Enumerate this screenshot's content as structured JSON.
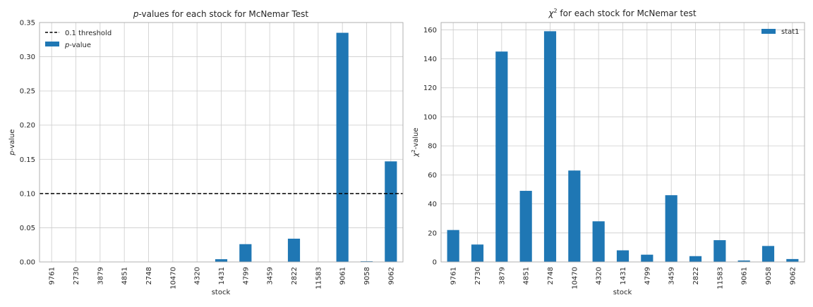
{
  "chart_data": [
    {
      "type": "bar",
      "title_pre": "",
      "title_italic": "p",
      "title_post": "-values for each stock for McNemar Test",
      "xlabel": "stock",
      "ylabel_italic": "p",
      "ylabel_post": "-value",
      "categories": [
        "9761",
        "2730",
        "3879",
        "4851",
        "2748",
        "10470",
        "4320",
        "1431",
        "4799",
        "3459",
        "2822",
        "11583",
        "9061",
        "9058",
        "9062"
      ],
      "values": [
        0.0,
        0.0,
        0.0,
        0.0,
        0.0,
        0.0,
        0.0,
        0.004,
        0.026,
        0.0,
        0.034,
        0.0,
        0.335,
        0.001,
        0.147
      ],
      "ylim": [
        0,
        0.35
      ],
      "yticks": [
        "0.00",
        "0.05",
        "0.10",
        "0.15",
        "0.20",
        "0.25",
        "0.30",
        "0.35"
      ],
      "threshold": 0.1,
      "threshold_label": "0.1 threshold",
      "legend_bar_italic": "p",
      "legend_bar_post": "-value",
      "legend_position": "top-left",
      "bar_color": "#1f77b4",
      "grid": true
    },
    {
      "type": "bar",
      "title_pre": "",
      "title_italic": "χ",
      "title_sup": "2",
      "title_post": " for each stock for McNemar test",
      "xlabel": "stock",
      "ylabel_italic": "χ",
      "ylabel_sup": "2",
      "ylabel_post": "-value",
      "categories": [
        "9761",
        "2730",
        "3879",
        "4851",
        "2748",
        "10470",
        "4320",
        "1431",
        "4799",
        "3459",
        "2822",
        "11583",
        "9061",
        "9058",
        "9062"
      ],
      "series": [
        {
          "name": "stat1",
          "values": [
            22,
            12,
            145,
            49,
            159,
            63,
            28,
            8,
            5,
            46,
            4,
            15,
            1,
            11,
            2
          ]
        }
      ],
      "ylim": [
        0,
        165
      ],
      "yticks": [
        "0",
        "20",
        "40",
        "60",
        "80",
        "100",
        "120",
        "140",
        "160"
      ],
      "legend_position": "top-right",
      "bar_color": "#1f77b4",
      "grid": true
    }
  ]
}
